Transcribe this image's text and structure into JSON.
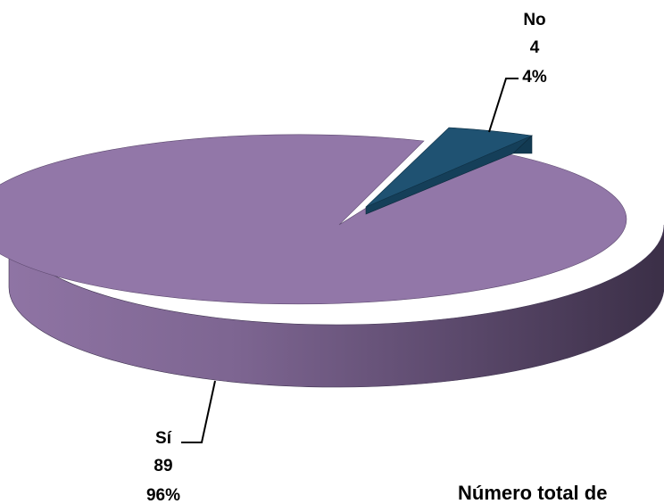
{
  "chart_data": {
    "type": "pie",
    "title": "Número total de",
    "slices": [
      {
        "name": "Sí",
        "value": 89,
        "percent_label": "96%",
        "color": "#9277A8"
      },
      {
        "name": "No",
        "value": 4,
        "percent_label": "4%",
        "color": "#1F5272"
      }
    ],
    "legend": "none",
    "data_labels": "outside with leader lines"
  }
}
